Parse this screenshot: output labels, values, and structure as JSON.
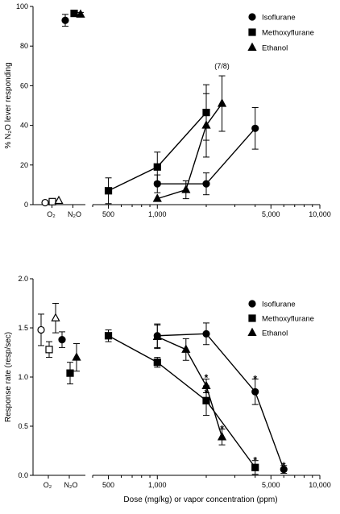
{
  "colors": {
    "ink": "#000000",
    "background": "#ffffff"
  },
  "chart_data": [
    {
      "type": "line",
      "title": "",
      "ylabel": "% N₂O lever responding",
      "ylim": [
        0,
        100
      ],
      "yticks": [
        0,
        20,
        40,
        60,
        80,
        100
      ],
      "x_scale": "log",
      "xlim": [
        400,
        10000
      ],
      "xticks": [
        500,
        1000,
        5000,
        10000
      ],
      "xtick_labels": [
        "500",
        "1,000",
        "5,000",
        "10,000"
      ],
      "control_labels": [
        "O₂",
        "N₂O"
      ],
      "legend": {
        "placement": "top-right",
        "entries": [
          {
            "name": "Isoflurane",
            "marker": "circle"
          },
          {
            "name": "Methoxyflurane",
            "marker": "square"
          },
          {
            "name": "Ethanol",
            "marker": "triangle"
          }
        ]
      },
      "controls": [
        {
          "condition": "O₂",
          "marker": "circle",
          "filled": false,
          "y": 1,
          "err": 0
        },
        {
          "condition": "O₂",
          "marker": "square",
          "filled": false,
          "y": 1.5,
          "err": 0
        },
        {
          "condition": "O₂",
          "marker": "triangle",
          "filled": false,
          "y": 2,
          "err": 0
        },
        {
          "condition": "N₂O",
          "marker": "circle",
          "filled": true,
          "y": 93,
          "err": 3
        },
        {
          "condition": "N₂O",
          "marker": "square",
          "filled": true,
          "y": 96.5,
          "err": 1.5
        },
        {
          "condition": "N₂O",
          "marker": "triangle",
          "filled": true,
          "y": 96,
          "err": 1
        }
      ],
      "series": [
        {
          "name": "Isoflurane",
          "marker": "circle",
          "x": [
            1000,
            2000,
            4000
          ],
          "y": [
            10.5,
            10.5,
            38.5
          ],
          "err": [
            4.5,
            5.5,
            10.5
          ]
        },
        {
          "name": "Methoxyflurane",
          "marker": "square",
          "x": [
            500,
            1000,
            2000
          ],
          "y": [
            7,
            19,
            46.5
          ],
          "err": [
            6.5,
            7.5,
            14
          ]
        },
        {
          "name": "Ethanol",
          "marker": "triangle",
          "x": [
            1000,
            1500,
            2000,
            2500
          ],
          "y": [
            3,
            7.5,
            40,
            51
          ],
          "err": [
            0,
            4.5,
            16,
            14
          ]
        }
      ],
      "annotations": [
        {
          "text": "(7/8)",
          "x": 2500,
          "y": 70
        }
      ]
    },
    {
      "type": "line",
      "title": "",
      "ylabel": "Response rate (resp/sec)",
      "xlabel": "Dose (mg/kg) or vapor concentration (ppm)",
      "ylim": [
        0,
        2.0
      ],
      "yticks": [
        "0.0",
        "0.5",
        "1.0",
        "1.5",
        "2.0"
      ],
      "x_scale": "log",
      "xlim": [
        400,
        10000
      ],
      "xticks": [
        500,
        1000,
        5000,
        10000
      ],
      "xtick_labels": [
        "500",
        "1,000",
        "5,000",
        "10,000"
      ],
      "control_labels": [
        "O₂",
        "N₂O"
      ],
      "legend": {
        "placement": "right",
        "entries": [
          {
            "name": "Isoflurane",
            "marker": "circle"
          },
          {
            "name": "Methoxyflurane",
            "marker": "square"
          },
          {
            "name": "Ethanol",
            "marker": "triangle"
          }
        ]
      },
      "controls": [
        {
          "condition": "O₂",
          "marker": "circle",
          "filled": false,
          "y": 1.48,
          "err": 0.16
        },
        {
          "condition": "O₂",
          "marker": "square",
          "filled": false,
          "y": 1.28,
          "err": 0.08
        },
        {
          "condition": "O₂",
          "marker": "triangle",
          "filled": false,
          "y": 1.6,
          "err": 0.15
        },
        {
          "condition": "N₂O",
          "marker": "circle",
          "filled": true,
          "y": 1.38,
          "err": 0.08
        },
        {
          "condition": "N₂O",
          "marker": "square",
          "filled": true,
          "y": 1.04,
          "err": 0.11
        },
        {
          "condition": "N₂O",
          "marker": "triangle",
          "filled": true,
          "y": 1.2,
          "err": 0.14
        }
      ],
      "series": [
        {
          "name": "Isoflurane",
          "marker": "circle",
          "x": [
            1000,
            2000,
            4000,
            6000
          ],
          "y": [
            1.42,
            1.44,
            0.85,
            0.06
          ],
          "err": [
            0.12,
            0.11,
            0.13,
            0.04
          ]
        },
        {
          "name": "Methoxyflurane",
          "marker": "square",
          "x": [
            500,
            1000,
            2000,
            4000
          ],
          "y": [
            1.42,
            1.15,
            0.76,
            0.08
          ],
          "err": [
            0.06,
            0.05,
            0.15,
            0.07
          ]
        },
        {
          "name": "Ethanol",
          "marker": "triangle",
          "x": [
            1000,
            1500,
            2000,
            2500
          ],
          "y": [
            1.41,
            1.28,
            0.91,
            0.39
          ],
          "err": [
            0.12,
            0.11,
            0.07,
            0.08
          ]
        }
      ],
      "significance": [
        {
          "text": "*",
          "x": 2000,
          "y": 0.99
        },
        {
          "text": "*",
          "x": 2000,
          "y": 0.84
        },
        {
          "text": "*",
          "x": 2500,
          "y": 0.47
        },
        {
          "text": "*",
          "x": 4000,
          "y": 0.98
        },
        {
          "text": "*",
          "x": 4000,
          "y": 0.15
        },
        {
          "text": "*",
          "x": 6000,
          "y": 0.1
        }
      ]
    }
  ]
}
